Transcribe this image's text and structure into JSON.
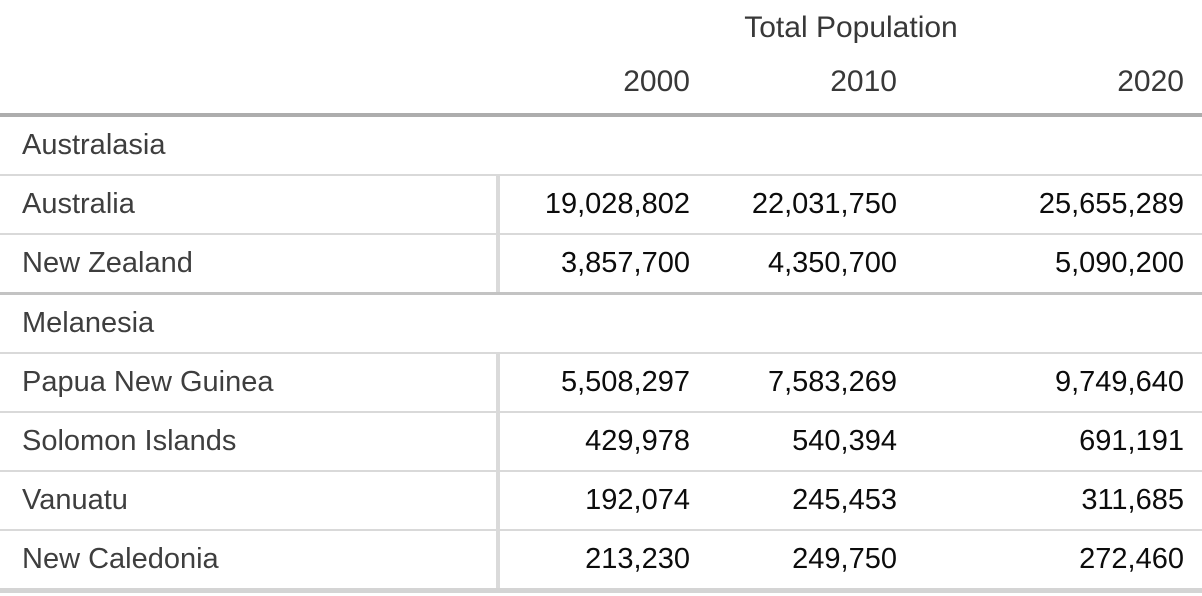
{
  "table": {
    "title": "Total Population",
    "year_headers": [
      "2000",
      "2010",
      "2020"
    ],
    "sections": [
      {
        "name": "Australasia",
        "rows": [
          {
            "label": "Australia",
            "values": [
              "19,028,802",
              "22,031,750",
              "25,655,289"
            ]
          },
          {
            "label": "New Zealand",
            "values": [
              "3,857,700",
              "4,350,700",
              "5,090,200"
            ]
          }
        ]
      },
      {
        "name": "Melanesia",
        "rows": [
          {
            "label": "Papua New Guinea",
            "values": [
              "5,508,297",
              "7,583,269",
              "9,749,640"
            ]
          },
          {
            "label": "Solomon Islands",
            "values": [
              "429,978",
              "540,394",
              "691,191"
            ]
          },
          {
            "label": "Vanuatu",
            "values": [
              "192,074",
              "245,453",
              "311,685"
            ]
          },
          {
            "label": "New Caledonia",
            "values": [
              "213,230",
              "249,750",
              "272,460"
            ]
          }
        ]
      }
    ]
  },
  "chart_data": {
    "type": "table",
    "title": "Total Population",
    "columns": [
      "2000",
      "2010",
      "2020"
    ],
    "groups": [
      {
        "name": "Australasia",
        "rows": [
          {
            "label": "Australia",
            "values": [
              19028802,
              22031750,
              25655289
            ]
          },
          {
            "label": "New Zealand",
            "values": [
              3857700,
              4350700,
              5090200
            ]
          }
        ]
      },
      {
        "name": "Melanesia",
        "rows": [
          {
            "label": "Papua New Guinea",
            "values": [
              5508297,
              7583269,
              9749640
            ]
          },
          {
            "label": "Solomon Islands",
            "values": [
              429978,
              540394,
              691191
            ]
          },
          {
            "label": "Vanuatu",
            "values": [
              192074,
              245453,
              311685
            ]
          },
          {
            "label": "New Caledonia",
            "values": [
              213230,
              249750,
              272460
            ]
          }
        ]
      }
    ]
  },
  "colors": {
    "background": "#ffffff",
    "header_text": "#383838",
    "label_text": "#3e3e3e",
    "number_text": "#0c0c0c",
    "border_strong": "#adadad",
    "border_section": "#c3c3c3",
    "border_light": "#d9d9d9",
    "border_bottom": "#d4d4d4"
  }
}
